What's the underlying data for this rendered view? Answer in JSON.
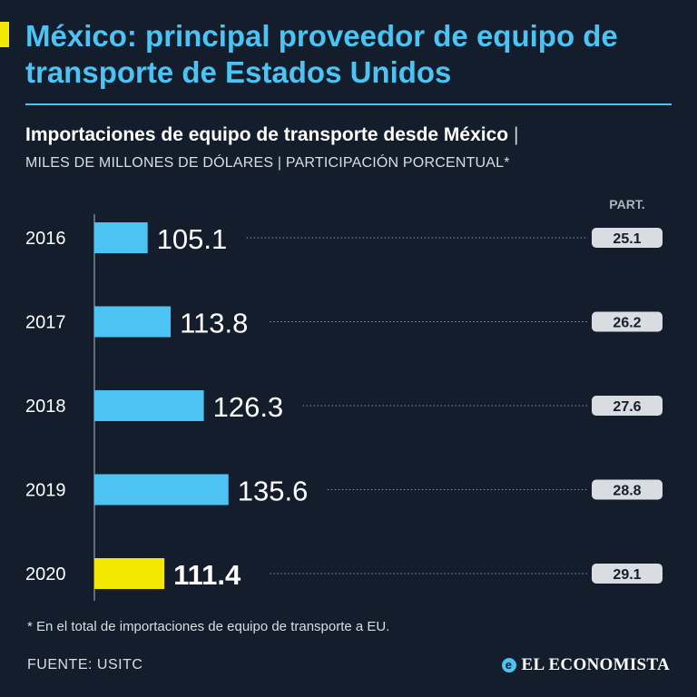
{
  "header": {
    "title": "México: principal proveedor de equipo de transporte de Estados Unidos",
    "subtitle": "Importaciones de equipo de transporte desde México",
    "subtitle_separator": "|",
    "units": "MILES DE MILLONES DE DÓLARES | PARTICIPACIÓN PORCENTUAL*"
  },
  "colors": {
    "background": "#141d2b",
    "accent": "#4cc3f2",
    "highlight": "#f5e800",
    "pill": "#d9dde2",
    "pill_text": "#141d2b"
  },
  "chart_data": {
    "type": "bar",
    "orientation": "horizontal",
    "categories": [
      "2016",
      "2017",
      "2018",
      "2019",
      "2020"
    ],
    "values": [
      105.1,
      113.8,
      126.3,
      135.6,
      111.4
    ],
    "value_labels": [
      "105.1",
      "113.8",
      "126.3",
      "135.6",
      "111.4"
    ],
    "share_header": "PART.",
    "share": [
      25.1,
      26.2,
      27.6,
      28.8,
      29.1
    ],
    "share_labels": [
      "25.1",
      "26.2",
      "27.6",
      "28.8",
      "29.1"
    ],
    "highlight_category": "2020",
    "xlim": [
      85,
      140
    ]
  },
  "footer": {
    "footnote": "* En el total de importaciones de equipo de transporte a EU.",
    "source": "FUENTE: USITC",
    "brand": "EL ECONOMISTA",
    "brand_icon": "e-logo-icon"
  }
}
